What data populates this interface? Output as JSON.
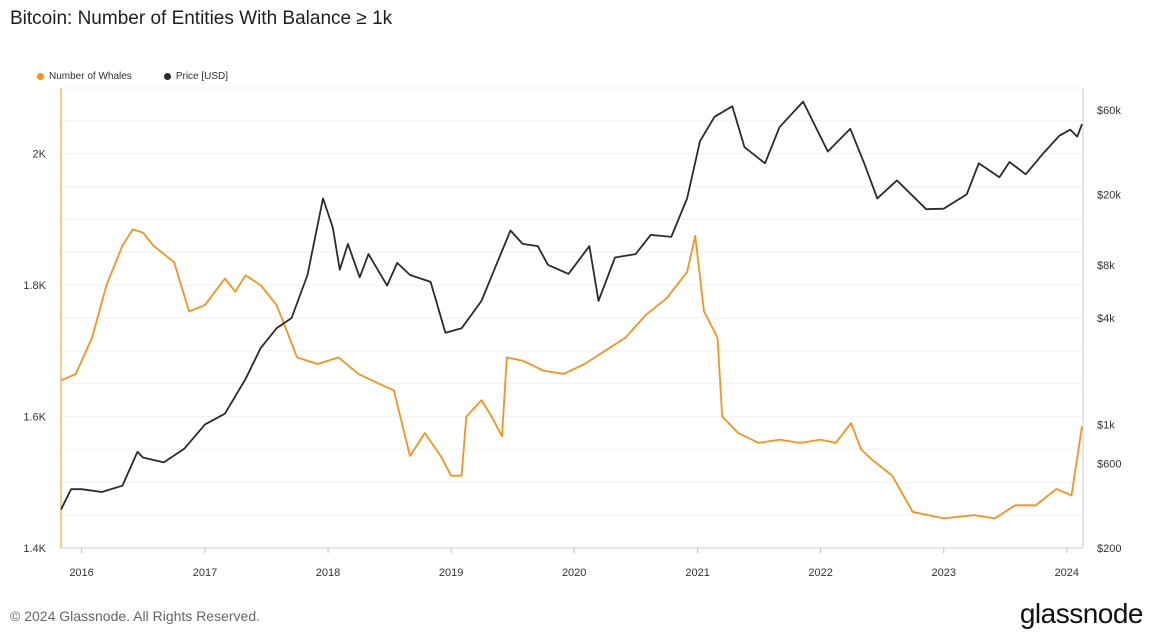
{
  "chart_data": {
    "type": "line",
    "title": "Bitcoin: Number of Entities With Balance ≥ 1k",
    "xlabel": "",
    "ylabel": "",
    "x_ticks": [
      "2016",
      "2017",
      "2018",
      "2019",
      "2020",
      "2021",
      "2022",
      "2023",
      "2024"
    ],
    "y_ticks_left": [
      "1.4K",
      "1.6K",
      "1.8K",
      "2K"
    ],
    "y_ticks_right": [
      "$200",
      "$600",
      "$1k",
      "$4k",
      "$8k",
      "$20k",
      "$60k"
    ],
    "ylim_left": [
      1400,
      2100
    ],
    "ylim_right_usd": [
      200,
      80000
    ],
    "y_right_scale": "log",
    "grid": true,
    "legend_position": "top-left",
    "series": [
      {
        "name": "Number of Whales",
        "color": "#f7931a",
        "axis": "left",
        "points": [
          [
            "2015-11-01",
            1655
          ],
          [
            "2015-12-15",
            1665
          ],
          [
            "2016-02-01",
            1720
          ],
          [
            "2016-03-15",
            1800
          ],
          [
            "2016-05-01",
            1860
          ],
          [
            "2016-06-01",
            1885
          ],
          [
            "2016-07-01",
            1880
          ],
          [
            "2016-08-01",
            1860
          ],
          [
            "2016-10-01",
            1835
          ],
          [
            "2016-11-15",
            1760
          ],
          [
            "2017-01-01",
            1770
          ],
          [
            "2017-03-01",
            1810
          ],
          [
            "2017-04-01",
            1790
          ],
          [
            "2017-05-01",
            1815
          ],
          [
            "2017-06-15",
            1800
          ],
          [
            "2017-08-01",
            1770
          ],
          [
            "2017-09-01",
            1730
          ],
          [
            "2017-10-01",
            1690
          ],
          [
            "2017-12-01",
            1680
          ],
          [
            "2018-02-01",
            1690
          ],
          [
            "2018-04-01",
            1665
          ],
          [
            "2018-06-01",
            1650
          ],
          [
            "2018-07-15",
            1640
          ],
          [
            "2018-09-01",
            1540
          ],
          [
            "2018-10-15",
            1575
          ],
          [
            "2018-12-01",
            1540
          ],
          [
            "2019-01-01",
            1510
          ],
          [
            "2019-02-01",
            1510
          ],
          [
            "2019-02-15",
            1600
          ],
          [
            "2019-04-01",
            1625
          ],
          [
            "2019-05-01",
            1600
          ],
          [
            "2019-06-01",
            1570
          ],
          [
            "2019-06-15",
            1690
          ],
          [
            "2019-08-01",
            1685
          ],
          [
            "2019-10-01",
            1670
          ],
          [
            "2019-12-01",
            1665
          ],
          [
            "2020-02-01",
            1680
          ],
          [
            "2020-04-01",
            1700
          ],
          [
            "2020-06-01",
            1720
          ],
          [
            "2020-08-01",
            1755
          ],
          [
            "2020-10-01",
            1780
          ],
          [
            "2020-12-01",
            1820
          ],
          [
            "2020-12-25",
            1875
          ],
          [
            "2021-01-20",
            1760
          ],
          [
            "2021-03-01",
            1720
          ],
          [
            "2021-03-15",
            1600
          ],
          [
            "2021-05-01",
            1575
          ],
          [
            "2021-07-01",
            1560
          ],
          [
            "2021-09-01",
            1565
          ],
          [
            "2021-11-01",
            1560
          ],
          [
            "2022-01-01",
            1565
          ],
          [
            "2022-02-15",
            1560
          ],
          [
            "2022-04-01",
            1590
          ],
          [
            "2022-05-01",
            1550
          ],
          [
            "2022-06-01",
            1535
          ],
          [
            "2022-08-01",
            1510
          ],
          [
            "2022-10-01",
            1455
          ],
          [
            "2023-01-01",
            1445
          ],
          [
            "2023-04-01",
            1450
          ],
          [
            "2023-06-01",
            1445
          ],
          [
            "2023-08-01",
            1465
          ],
          [
            "2023-10-01",
            1465
          ],
          [
            "2023-12-01",
            1490
          ],
          [
            "2024-01-15",
            1480
          ],
          [
            "2024-02-15",
            1585
          ]
        ]
      },
      {
        "name": "Price [USD]",
        "color": "#2b2b2b",
        "axis": "right",
        "points": [
          [
            "2015-11-01",
            330
          ],
          [
            "2015-12-01",
            430
          ],
          [
            "2016-01-01",
            430
          ],
          [
            "2016-03-01",
            415
          ],
          [
            "2016-05-01",
            450
          ],
          [
            "2016-06-15",
            700
          ],
          [
            "2016-07-01",
            650
          ],
          [
            "2016-09-01",
            610
          ],
          [
            "2016-11-01",
            730
          ],
          [
            "2017-01-01",
            1000
          ],
          [
            "2017-03-01",
            1150
          ],
          [
            "2017-05-01",
            1800
          ],
          [
            "2017-06-15",
            2700
          ],
          [
            "2017-08-01",
            3500
          ],
          [
            "2017-09-15",
            4000
          ],
          [
            "2017-11-01",
            7000
          ],
          [
            "2017-12-17",
            19000
          ],
          [
            "2018-01-15",
            13000
          ],
          [
            "2018-02-05",
            7500
          ],
          [
            "2018-03-01",
            10500
          ],
          [
            "2018-04-05",
            6800
          ],
          [
            "2018-05-01",
            9200
          ],
          [
            "2018-06-25",
            6100
          ],
          [
            "2018-07-25",
            8200
          ],
          [
            "2018-09-01",
            7000
          ],
          [
            "2018-11-01",
            6400
          ],
          [
            "2018-12-15",
            3300
          ],
          [
            "2019-02-01",
            3500
          ],
          [
            "2019-04-01",
            5000
          ],
          [
            "2019-05-15",
            8000
          ],
          [
            "2019-06-26",
            12500
          ],
          [
            "2019-08-01",
            10500
          ],
          [
            "2019-09-15",
            10200
          ],
          [
            "2019-10-15",
            8000
          ],
          [
            "2019-12-15",
            7100
          ],
          [
            "2020-02-15",
            10200
          ],
          [
            "2020-03-13",
            5000
          ],
          [
            "2020-05-01",
            8800
          ],
          [
            "2020-07-01",
            9200
          ],
          [
            "2020-08-15",
            11800
          ],
          [
            "2020-10-15",
            11500
          ],
          [
            "2020-12-01",
            19000
          ],
          [
            "2021-01-08",
            40000
          ],
          [
            "2021-02-20",
            55000
          ],
          [
            "2021-04-14",
            63000
          ],
          [
            "2021-05-20",
            37000
          ],
          [
            "2021-07-20",
            30000
          ],
          [
            "2021-09-01",
            48000
          ],
          [
            "2021-11-10",
            67000
          ],
          [
            "2022-01-22",
            35000
          ],
          [
            "2022-03-30",
            47000
          ],
          [
            "2022-05-10",
            30000
          ],
          [
            "2022-06-18",
            19000
          ],
          [
            "2022-08-15",
            24000
          ],
          [
            "2022-11-10",
            16500
          ],
          [
            "2023-01-01",
            16600
          ],
          [
            "2023-03-10",
            20000
          ],
          [
            "2023-04-15",
            30000
          ],
          [
            "2023-06-15",
            25000
          ],
          [
            "2023-07-15",
            30500
          ],
          [
            "2023-09-01",
            26000
          ],
          [
            "2023-10-25",
            34500
          ],
          [
            "2023-12-10",
            43000
          ],
          [
            "2024-01-11",
            46500
          ],
          [
            "2024-02-01",
            42500
          ],
          [
            "2024-02-15",
            50000
          ]
        ]
      }
    ]
  },
  "legend": {
    "whales_label": "Number of Whales",
    "price_label": "Price [USD]"
  },
  "footer": {
    "copyright": "© 2024 Glassnode. All Rights Reserved.",
    "brand": "glassnode"
  }
}
